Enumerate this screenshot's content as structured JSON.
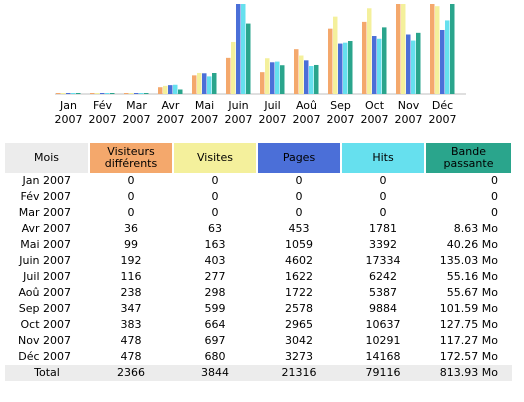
{
  "colors": {
    "visiteurs": "#f4a86c",
    "visites": "#f4f09c",
    "pages": "#4b6fd8",
    "hits": "#66e0ee",
    "bande": "#2aa58c",
    "header_neutral": "#ececec"
  },
  "chart_data": {
    "type": "bar",
    "categories": [
      [
        "Jan",
        "2007"
      ],
      [
        "Fév",
        "2007"
      ],
      [
        "Mar",
        "2007"
      ],
      [
        "Avr",
        "2007"
      ],
      [
        "Mai",
        "2007"
      ],
      [
        "Juin",
        "2007"
      ],
      [
        "Juil",
        "2007"
      ],
      [
        "Aoû",
        "2007"
      ],
      [
        "Sep",
        "2007"
      ],
      [
        "Oct",
        "2007"
      ],
      [
        "Nov",
        "2007"
      ],
      [
        "Déc",
        "2007"
      ]
    ],
    "series": [
      {
        "name": "Visiteurs différents",
        "color": "#f4a86c",
        "values": [
          0,
          0,
          0,
          36,
          99,
          192,
          116,
          238,
          347,
          383,
          478,
          478
        ]
      },
      {
        "name": "Visites",
        "color": "#f4f09c",
        "values": [
          0,
          0,
          0,
          63,
          163,
          403,
          277,
          298,
          599,
          664,
          697,
          680
        ]
      },
      {
        "name": "Pages",
        "color": "#4b6fd8",
        "values": [
          0,
          0,
          0,
          453,
          1059,
          4602,
          1622,
          1722,
          2578,
          2965,
          3042,
          3273
        ]
      },
      {
        "name": "Hits",
        "color": "#66e0ee",
        "values": [
          0,
          0,
          0,
          1781,
          3392,
          17334,
          6242,
          5387,
          9884,
          10637,
          10291,
          14168
        ]
      },
      {
        "name": "Bande passante",
        "color": "#2aa58c",
        "values": [
          0,
          0,
          0,
          8.63,
          40.26,
          135.03,
          55.16,
          55.67,
          101.59,
          127.75,
          117.27,
          172.57
        ]
      }
    ]
  },
  "table": {
    "headers": {
      "mois": "Mois",
      "visiteurs": "Visiteurs différents",
      "visites": "Visites",
      "pages": "Pages",
      "hits": "Hits",
      "bande": "Bande passante"
    },
    "rows": [
      {
        "mois": "Jan 2007",
        "visiteurs": "0",
        "visites": "0",
        "pages": "0",
        "hits": "0",
        "bande": "0"
      },
      {
        "mois": "Fév 2007",
        "visiteurs": "0",
        "visites": "0",
        "pages": "0",
        "hits": "0",
        "bande": "0"
      },
      {
        "mois": "Mar 2007",
        "visiteurs": "0",
        "visites": "0",
        "pages": "0",
        "hits": "0",
        "bande": "0"
      },
      {
        "mois": "Avr 2007",
        "visiteurs": "36",
        "visites": "63",
        "pages": "453",
        "hits": "1781",
        "bande": "8.63 Mo"
      },
      {
        "mois": "Mai 2007",
        "visiteurs": "99",
        "visites": "163",
        "pages": "1059",
        "hits": "3392",
        "bande": "40.26 Mo"
      },
      {
        "mois": "Juin 2007",
        "visiteurs": "192",
        "visites": "403",
        "pages": "4602",
        "hits": "17334",
        "bande": "135.03 Mo"
      },
      {
        "mois": "Juil 2007",
        "visiteurs": "116",
        "visites": "277",
        "pages": "1622",
        "hits": "6242",
        "bande": "55.16 Mo"
      },
      {
        "mois": "Aoû 2007",
        "visiteurs": "238",
        "visites": "298",
        "pages": "1722",
        "hits": "5387",
        "bande": "55.67 Mo"
      },
      {
        "mois": "Sep 2007",
        "visiteurs": "347",
        "visites": "599",
        "pages": "2578",
        "hits": "9884",
        "bande": "101.59 Mo"
      },
      {
        "mois": "Oct 2007",
        "visiteurs": "383",
        "visites": "664",
        "pages": "2965",
        "hits": "10637",
        "bande": "127.75 Mo"
      },
      {
        "mois": "Nov 2007",
        "visiteurs": "478",
        "visites": "697",
        "pages": "3042",
        "hits": "10291",
        "bande": "117.27 Mo"
      },
      {
        "mois": "Déc 2007",
        "visiteurs": "478",
        "visites": "680",
        "pages": "3273",
        "hits": "14168",
        "bande": "172.57 Mo"
      }
    ],
    "total": {
      "label": "Total",
      "visiteurs": "2366",
      "visites": "3844",
      "pages": "21316",
      "hits": "79116",
      "bande": "813.93 Mo"
    }
  }
}
